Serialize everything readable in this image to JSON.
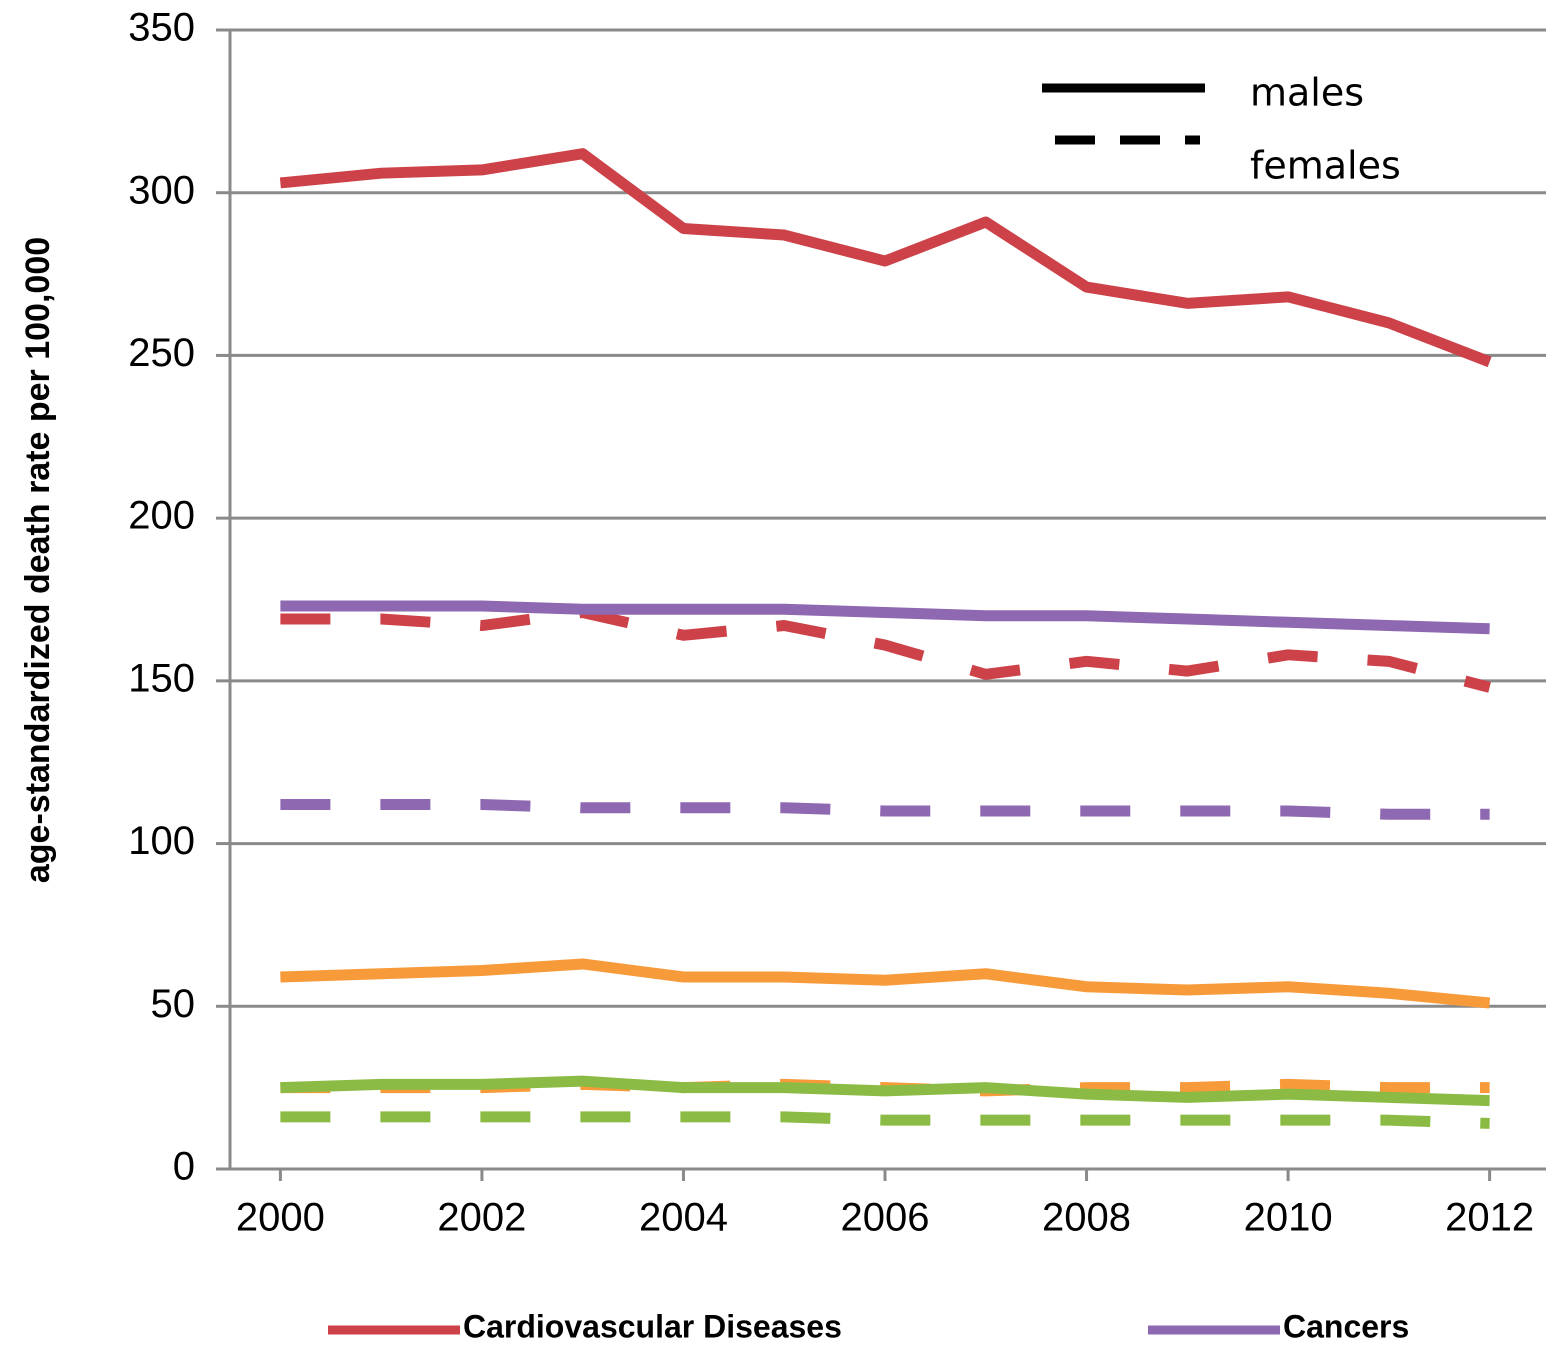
{
  "chart_data": {
    "type": "line",
    "y_label": "age-standardized death rate per 100,000",
    "x": [
      2000,
      2001,
      2002,
      2003,
      2004,
      2005,
      2006,
      2007,
      2008,
      2009,
      2010,
      2011,
      2012
    ],
    "xlim": [
      1999.5,
      2012.5
    ],
    "xticks": [
      2000,
      2002,
      2004,
      2006,
      2008,
      2010,
      2012
    ],
    "ylim": [
      0,
      350
    ],
    "yticks": [
      0,
      50,
      100,
      150,
      200,
      250,
      300,
      350
    ],
    "grid": true,
    "series": [
      {
        "color": "#cc4248",
        "dashed": false,
        "values": [
          303,
          306,
          307,
          312,
          289,
          287,
          279,
          291,
          271,
          266,
          268,
          260,
          248
        ]
      },
      {
        "color": "#cc4248",
        "dashed": true,
        "values": [
          169,
          169,
          167,
          171,
          164,
          167,
          161,
          152,
          156,
          153,
          158,
          156,
          148
        ]
      },
      {
        "color": "#8e68b0",
        "dashed": false,
        "values": [
          173,
          173,
          173,
          172,
          172,
          172,
          171,
          170,
          170,
          169,
          168,
          167,
          166
        ]
      },
      {
        "color": "#8e68b0",
        "dashed": true,
        "values": [
          112,
          112,
          112,
          111,
          111,
          111,
          110,
          110,
          110,
          110,
          110,
          109,
          109
        ]
      },
      {
        "color": "#f79a3a",
        "dashed": false,
        "values": [
          59,
          60,
          61,
          63,
          59,
          59,
          58,
          60,
          56,
          55,
          56,
          54,
          51
        ]
      },
      {
        "color": "#f79a3a",
        "dashed": true,
        "values": [
          25,
          25,
          25,
          26,
          25,
          26,
          25,
          24,
          25,
          25,
          26,
          25,
          25
        ]
      },
      {
        "color": "#8cbb45",
        "dashed": false,
        "values": [
          25,
          26,
          26,
          27,
          25,
          25,
          24,
          25,
          23,
          22,
          23,
          22,
          21
        ]
      },
      {
        "color": "#8cbb45",
        "dashed": true,
        "values": [
          16,
          16,
          16,
          16,
          16,
          16,
          15,
          15,
          15,
          15,
          15,
          15,
          14
        ]
      }
    ],
    "style_legend": [
      {
        "label": "males",
        "dashed": false
      },
      {
        "label": "females",
        "dashed": true
      }
    ],
    "disease_legend": [
      {
        "name": "Cardiovascular Diseases",
        "color": "#cc4248"
      },
      {
        "name": "Cancers",
        "color": "#8e68b0"
      }
    ]
  }
}
